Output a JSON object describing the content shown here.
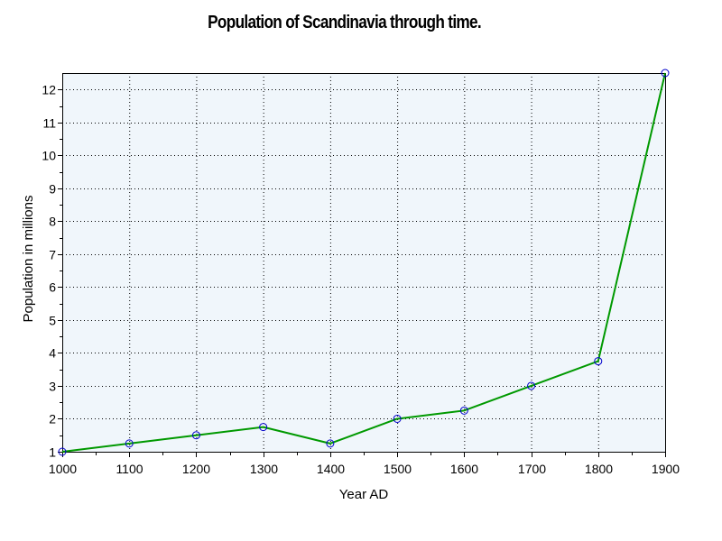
{
  "chart_data": {
    "type": "line",
    "title": "Population of Scandinavia through time.",
    "xlabel": "Year AD",
    "ylabel": "Population in millions",
    "xlim": [
      1000,
      1900
    ],
    "ylim": [
      1,
      12.5
    ],
    "x_ticks": [
      1000,
      1100,
      1200,
      1300,
      1400,
      1500,
      1600,
      1700,
      1800,
      1900
    ],
    "y_ticks": [
      1,
      2,
      3,
      4,
      5,
      6,
      7,
      8,
      9,
      10,
      11,
      12
    ],
    "grid": true,
    "legend": "none",
    "series": [
      {
        "x": [
          1000,
          1100,
          1200,
          1300,
          1400,
          1500,
          1600,
          1700,
          1800,
          1900
        ],
        "values": [
          1,
          1.25,
          1.5,
          1.75,
          1.25,
          2,
          2.25,
          3,
          3.75,
          12.5
        ],
        "line_color": "#009900",
        "marker": "open-circle",
        "marker_color": "#0000cc"
      }
    ],
    "plot_background": "#f0f6fb"
  }
}
